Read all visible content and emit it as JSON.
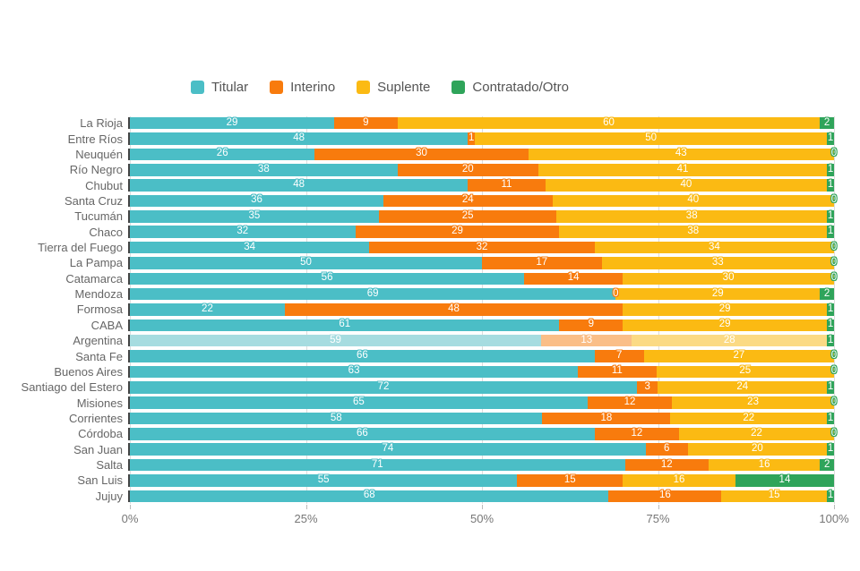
{
  "chart_data": {
    "type": "bar",
    "orientation": "horizontal",
    "stacked": true,
    "unit_suffix": "%",
    "title": "",
    "xlabel": "",
    "ylabel": "",
    "xlim": [
      0,
      100
    ],
    "grid": true,
    "legend_position": "top",
    "highlighted_category": "Argentina",
    "x_ticks": [
      {
        "label": "0%",
        "value": 0
      },
      {
        "label": "25%",
        "value": 25
      },
      {
        "label": "50%",
        "value": 50
      },
      {
        "label": "75%",
        "value": 75
      },
      {
        "label": "100%",
        "value": 100
      }
    ],
    "categories": [
      "La Rioja",
      "Entre Ríos",
      "Neuquén",
      "Río Negro",
      "Chubut",
      "Santa Cruz",
      "Tucumán",
      "Chaco",
      "Tierra del Fuego",
      "La Pampa",
      "Catamarca",
      "Mendoza",
      "Formosa",
      "CABA",
      "Argentina",
      "Santa Fe",
      "Buenos Aires",
      "Santiago del Estero",
      "Misiones",
      "Corrientes",
      "Córdoba",
      "San Juan",
      "Salta",
      "San Luis",
      "Jujuy"
    ],
    "series": [
      {
        "name": "Titular",
        "color": "#4BBEC6",
        "color_light": "#A6DCE0",
        "values": [
          29,
          48,
          26,
          38,
          48,
          36,
          35,
          32,
          34,
          50,
          56,
          69,
          22,
          61,
          59,
          66,
          63,
          72,
          65,
          58,
          66,
          74,
          71,
          55,
          68
        ]
      },
      {
        "name": "Interino",
        "color": "#F87B0D",
        "color_light": "#FABE87",
        "values": [
          9,
          1,
          30,
          20,
          11,
          24,
          25,
          29,
          32,
          17,
          14,
          0,
          48,
          9,
          13,
          7,
          11,
          3,
          12,
          18,
          12,
          6,
          12,
          15,
          16
        ]
      },
      {
        "name": "Suplente",
        "color": "#FBBA13",
        "color_light": "#FBDA84",
        "values": [
          60,
          50,
          43,
          41,
          40,
          40,
          38,
          38,
          34,
          33,
          30,
          29,
          29,
          29,
          28,
          27,
          25,
          24,
          23,
          22,
          22,
          20,
          16,
          16,
          15
        ]
      },
      {
        "name": "Contratado/Otro",
        "color": "#2FA45A",
        "color_light": "#2FA45A",
        "values": [
          2,
          1,
          0,
          1,
          1,
          0,
          1,
          1,
          0,
          0,
          0,
          2,
          1,
          1,
          1,
          0,
          0,
          1,
          0,
          1,
          0,
          1,
          2,
          14,
          1
        ]
      }
    ]
  }
}
